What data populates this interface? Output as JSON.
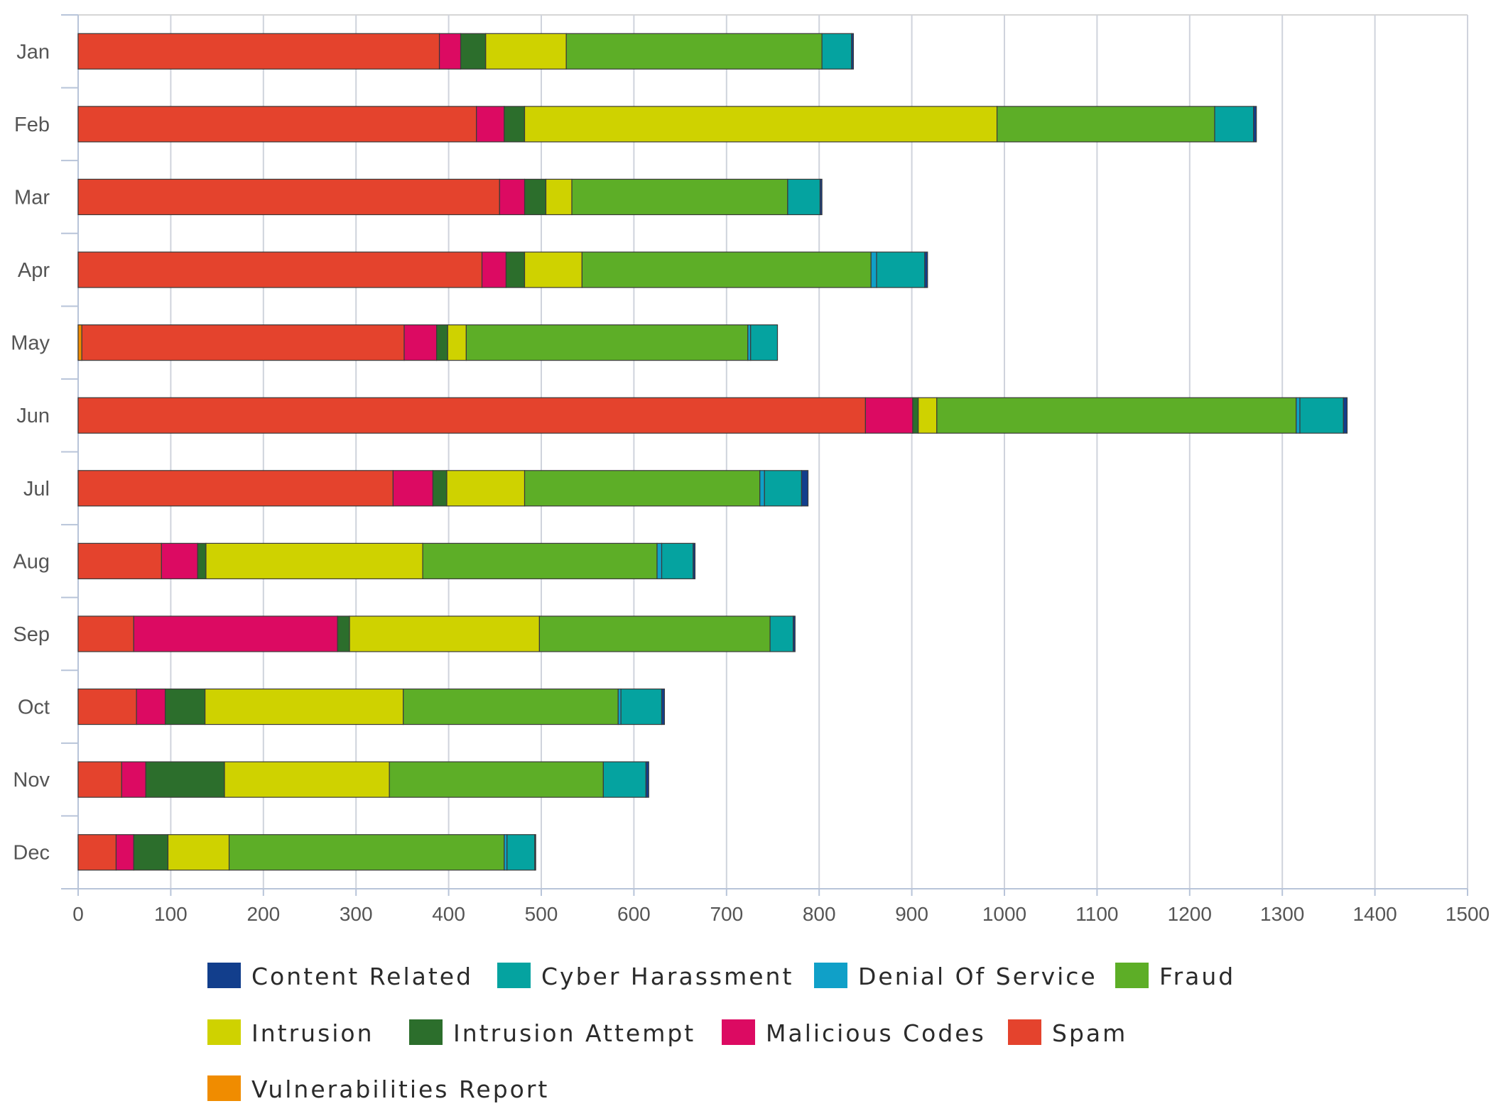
{
  "chart_data": {
    "type": "bar",
    "orientation": "horizontal",
    "stacked": true,
    "categories": [
      "Jan",
      "Feb",
      "Mar",
      "Apr",
      "May",
      "Jun",
      "Jul",
      "Aug",
      "Sep",
      "Oct",
      "Nov",
      "Dec"
    ],
    "xlim": [
      0,
      1500
    ],
    "x_ticks": [
      "0",
      "100",
      "200",
      "300",
      "400",
      "500",
      "600",
      "700",
      "800",
      "900",
      "1000",
      "1100",
      "1200",
      "1300",
      "1400",
      "1500"
    ],
    "grid": "vertical",
    "legend_position": "bottom",
    "series": [
      {
        "name": "Vulnerabilities Report",
        "color": "#f08c00",
        "values": [
          0,
          0,
          0,
          0,
          4,
          0,
          0,
          0,
          0,
          0,
          0,
          0
        ]
      },
      {
        "name": "Spam",
        "color": "#e4432d",
        "values": [
          390,
          430,
          455,
          436,
          348,
          850,
          340,
          90,
          60,
          63,
          47,
          41
        ]
      },
      {
        "name": "Malicious Codes",
        "color": "#dc0a62",
        "values": [
          23,
          30,
          27,
          26,
          35,
          51,
          43,
          39,
          220,
          31,
          26,
          19
        ]
      },
      {
        "name": "Intrusion Attempt",
        "color": "#2c6e2c",
        "values": [
          27,
          22,
          23,
          20,
          12,
          6,
          15,
          9,
          13,
          43,
          85,
          37
        ]
      },
      {
        "name": "Intrusion",
        "color": "#cfd200",
        "values": [
          87,
          510,
          28,
          62,
          20,
          20,
          84,
          234,
          205,
          214,
          178,
          66
        ]
      },
      {
        "name": "Fraud",
        "color": "#5dae27",
        "values": [
          276,
          235,
          233,
          312,
          304,
          388,
          254,
          253,
          249,
          232,
          231,
          297
        ]
      },
      {
        "name": "Denial Of Service",
        "color": "#10a0c8",
        "values": [
          0,
          0,
          0,
          6,
          3,
          4,
          5,
          5,
          0,
          3,
          0,
          3
        ]
      },
      {
        "name": "Cyber Harassment",
        "color": "#05a3a0",
        "values": [
          32,
          42,
          35,
          52,
          29,
          47,
          40,
          34,
          25,
          44,
          46,
          30
        ]
      },
      {
        "name": "Content Related",
        "color": "#123e8c",
        "values": [
          2,
          3,
          2,
          3,
          0,
          4,
          7,
          2,
          2,
          3,
          3,
          1
        ]
      }
    ],
    "legend_order": [
      "Content Related",
      "Cyber Harassment",
      "Denial Of Service",
      "Fraud",
      "Intrusion",
      "Intrusion Attempt",
      "Malicious Codes",
      "Spam",
      "Vulnerabilities Report"
    ]
  }
}
